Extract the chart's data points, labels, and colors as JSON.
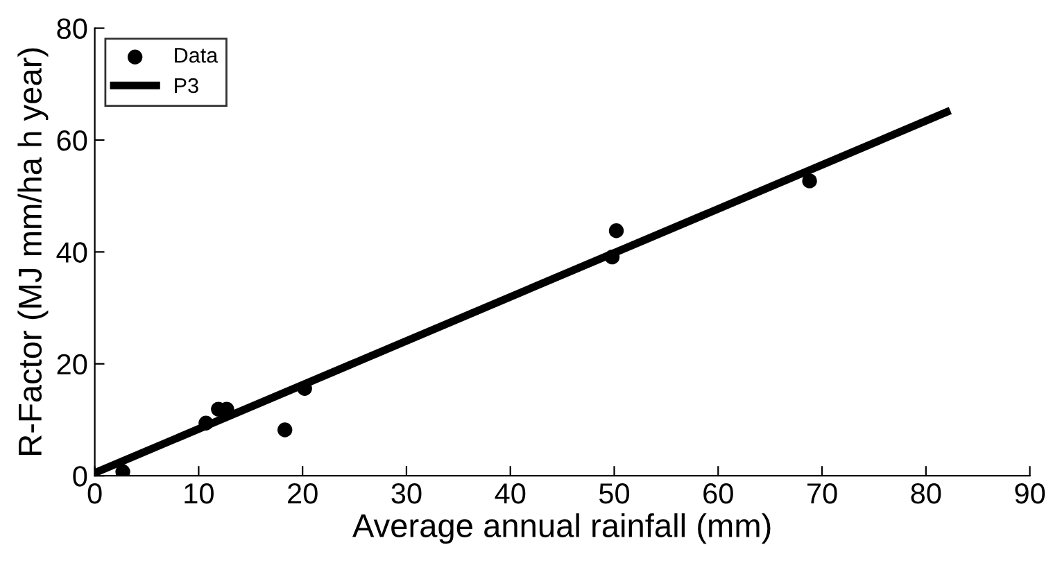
{
  "chart_data": {
    "type": "scatter",
    "xlabel": "Average annual rainfall (mm)",
    "ylabel": "R-Factor (MJ mm/ha h year)",
    "xlim": [
      0,
      90
    ],
    "ylim": [
      0,
      80
    ],
    "xticks": [
      0,
      10,
      20,
      30,
      40,
      50,
      60,
      70,
      80,
      90
    ],
    "yticks": [
      0,
      20,
      40,
      60,
      80
    ],
    "grid": false,
    "legend": "top left",
    "series": [
      {
        "name": "Data",
        "color": "#000000",
        "marker": "circle",
        "x": [
          2.7,
          10.7,
          11.9,
          12.7,
          18.3,
          20.2,
          49.8,
          50.2,
          68.8
        ],
        "values": [
          0.7,
          9.4,
          11.9,
          11.9,
          8.2,
          15.6,
          39.1,
          43.8,
          52.7
        ]
      },
      {
        "name": "P3",
        "type": "line",
        "color": "#000000",
        "line_style": "solid",
        "x": [
          0,
          82
        ],
        "values": [
          0.5,
          65
        ]
      }
    ]
  }
}
